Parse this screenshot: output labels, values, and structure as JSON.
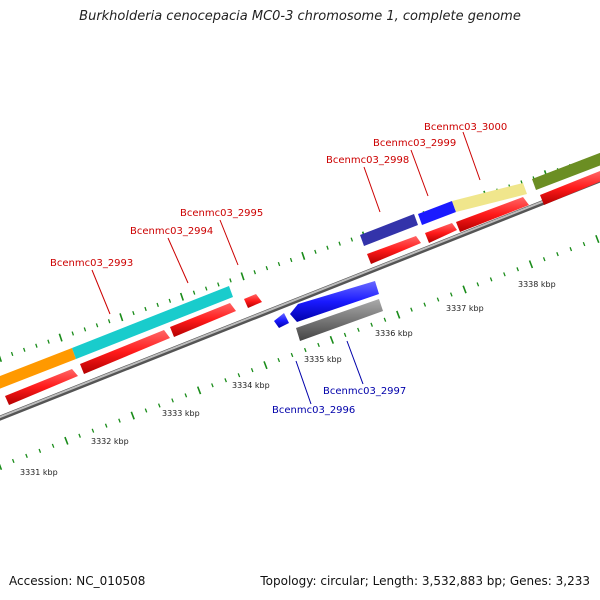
{
  "title": "Burkholderia cenocepacia MC0-3 chromosome 1, complete genome",
  "footer": {
    "accession": "Accession: NC_010508",
    "topology": "Topology: circular; Length: 3,532,883 bp; Genes: 3,233"
  },
  "scale_labels": [
    "3331 kbp",
    "3332 kbp",
    "3333 kbp",
    "3334 kbp",
    "3335 kbp",
    "3336 kbp",
    "3337 kbp",
    "3338 kbp"
  ],
  "gene_labels": [
    {
      "text": "Bcenmc03_2993",
      "color": "#cc0000"
    },
    {
      "text": "Bcenmc03_2994",
      "color": "#cc0000"
    },
    {
      "text": "Bcenmc03_2995",
      "color": "#cc0000"
    },
    {
      "text": "Bcenmc03_2996",
      "color": "#0000aa"
    },
    {
      "text": "Bcenmc03_2997",
      "color": "#0000aa"
    },
    {
      "text": "Bcenmc03_2998",
      "color": "#cc0000"
    },
    {
      "text": "Bcenmc03_2999",
      "color": "#cc0000"
    },
    {
      "text": "Bcenmc03_3000",
      "color": "#cc0000"
    }
  ],
  "colors": {
    "forward_cds": "#ff1a1a",
    "reverse_cds": "#1a1aff",
    "pseudo": "#666666",
    "backbone": "#8c8c8c",
    "tick": "#1a8c1a"
  }
}
